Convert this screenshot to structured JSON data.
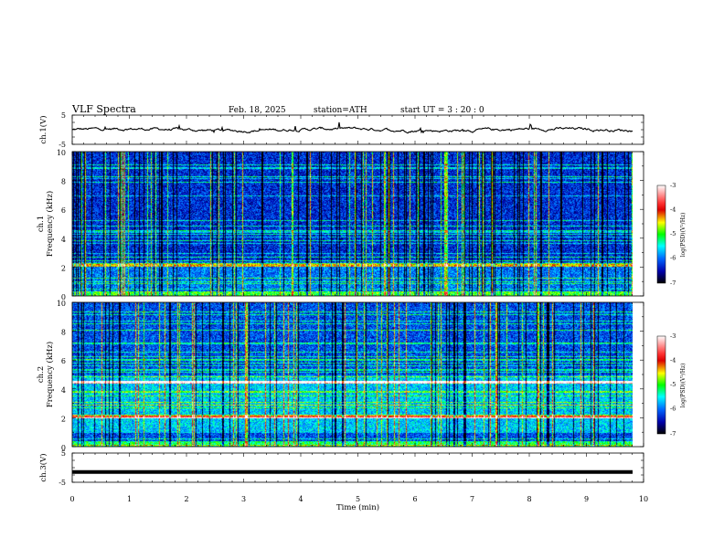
{
  "header": {
    "title": "VLF  Spectra",
    "date": "Feb. 18, 2025",
    "station": "station=ATH",
    "start": "start  UT  =   3  : 20 : 0"
  },
  "chart_data": [
    {
      "type": "line",
      "name": "ch1-waveform",
      "ylabel": "ch.1(V)",
      "ylim": [
        -5,
        5
      ],
      "yticks": [
        "5",
        "-5"
      ],
      "xlim": [
        0,
        10
      ]
    },
    {
      "type": "heatmap",
      "name": "ch1-spectrogram",
      "ylabel_line1": "ch.1",
      "ylabel_line2": "Frequency  (kHz)",
      "ylim": [
        0,
        10
      ],
      "yticks": [
        "10",
        "8",
        "6",
        "4",
        "2",
        "0"
      ],
      "xlim": [
        0,
        10
      ],
      "data_xmax": 9.8,
      "colorbar": {
        "label": "log(PSD)(V²/Hz)",
        "range": [
          -7,
          -3
        ],
        "ticks": [
          "-3",
          "-4",
          "-5",
          "-6",
          "-7"
        ]
      }
    },
    {
      "type": "heatmap",
      "name": "ch2-spectrogram",
      "ylabel_line1": "ch.2",
      "ylabel_line2": "Frequency  (kHz)",
      "ylim": [
        0,
        10
      ],
      "yticks": [
        "10",
        "8",
        "6",
        "4",
        "2",
        "0"
      ],
      "xlim": [
        0,
        10
      ],
      "data_xmax": 9.8,
      "colorbar": {
        "label": "log(PSD)(V²/Hz)",
        "range": [
          -7,
          -3
        ],
        "ticks": [
          "-3",
          "-4",
          "-5",
          "-6",
          "-7"
        ]
      }
    },
    {
      "type": "line",
      "name": "ch3-waveform",
      "ylabel": "ch.3(V)",
      "ylim": [
        -5,
        5
      ],
      "yticks": [
        "5",
        "-5"
      ],
      "xlim": [
        0,
        10
      ]
    }
  ],
  "xaxis": {
    "label": "Time  (min)",
    "ticks": [
      "0",
      "1",
      "2",
      "3",
      "4",
      "5",
      "6",
      "7",
      "8",
      "9",
      "10"
    ]
  },
  "colors": {
    "axis": "#000000",
    "background": "#ffffff",
    "low": "#000000",
    "mid": "#00ff00",
    "high": "#ffffff"
  }
}
